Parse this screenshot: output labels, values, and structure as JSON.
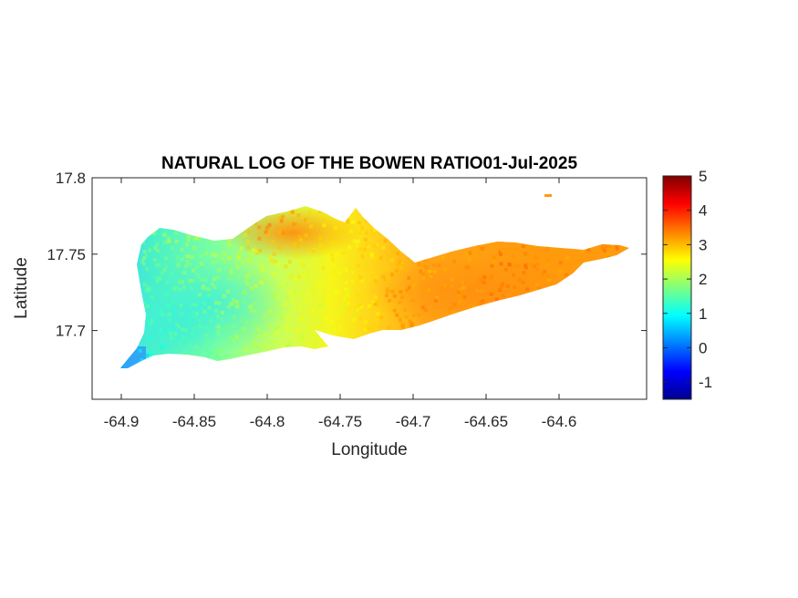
{
  "chart_data": {
    "type": "heatmap",
    "title": "NATURAL LOG OF THE BOWEN RATIO01-Jul-2025",
    "xlabel": "Longitude",
    "ylabel": "Latitude",
    "xlim": [
      -64.92,
      -64.54
    ],
    "ylim": [
      17.655,
      17.8
    ],
    "xticks": [
      "-64.9",
      "-64.85",
      "-64.8",
      "-64.75",
      "-64.7",
      "-64.65",
      "-64.6"
    ],
    "yticks": [
      "17.8",
      "17.75",
      "17.7"
    ],
    "colorbar": {
      "colormap": "jet",
      "range": [
        -1.5,
        5
      ],
      "ticks": [
        "5",
        "4",
        "3",
        "2",
        "1",
        "0",
        "-1"
      ]
    },
    "region": "St. Croix island land surface",
    "value_trend": [
      {
        "longitude": -64.9,
        "latitude": 17.68,
        "value": 0.5
      },
      {
        "longitude": -64.86,
        "latitude": 17.71,
        "value": 1.4
      },
      {
        "longitude": -64.83,
        "latitude": 17.73,
        "value": 1.9
      },
      {
        "longitude": -64.8,
        "latitude": 17.77,
        "value": 3.3
      },
      {
        "longitude": -64.76,
        "latitude": 17.72,
        "value": 2.4
      },
      {
        "longitude": -64.7,
        "latitude": 17.72,
        "value": 3.3
      },
      {
        "longitude": -64.64,
        "latitude": 17.735,
        "value": 3.4
      },
      {
        "longitude": -64.58,
        "latitude": 17.75,
        "value": 3.3
      }
    ]
  }
}
